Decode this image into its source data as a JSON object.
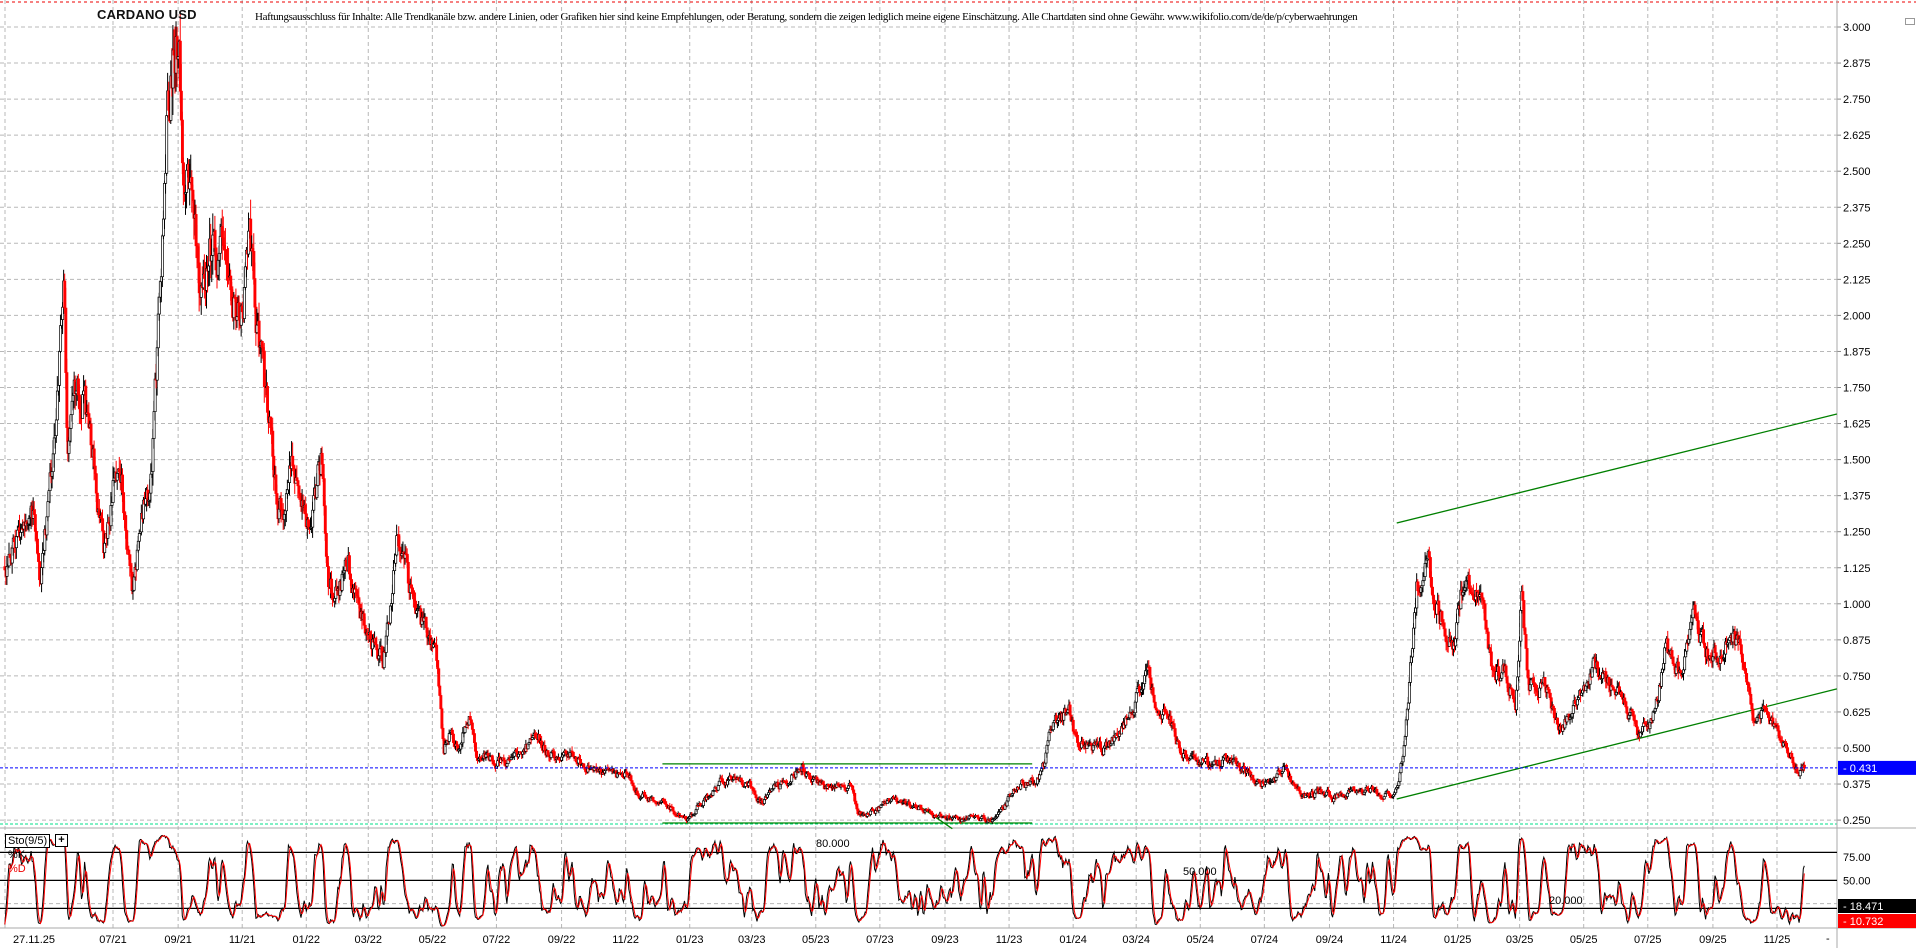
{
  "header": {
    "title": "CARDANO USD",
    "disclaimer": "Haftungsausschluss für Inhalte: Alle Trendkanäle bzw. andere Linien, oder Grafiken hier sind keine Empfehlungen, oder Beratung, sondern die zeigen lediglich meine eigene Einschätzung. Alle Chartdaten sind ohne Gewähr.  www.wikifolio.com/de/de/p/cyberwaehrungen"
  },
  "colors": {
    "up_candle": "#000000",
    "down_candle": "#ff0000",
    "trendline": "#008000",
    "last_price_line": "#0000ff",
    "grid": "#b8b8b8",
    "k_line": "#000000",
    "d_line": "#ff0000",
    "last_price_box": "#0000ff",
    "k_box": "#000000",
    "d_box": "#ff0000"
  },
  "chart_data": {
    "type": "candlestick",
    "title": "CARDANO USD",
    "ylim": [
      0.25,
      3.0
    ],
    "y_ticks": [
      "3.000",
      "2.875",
      "2.750",
      "2.625",
      "2.500",
      "2.375",
      "2.250",
      "2.125",
      "2.000",
      "1.875",
      "1.750",
      "1.625",
      "1.500",
      "1.375",
      "1.250",
      "1.125",
      "1.000",
      "0.875",
      "0.750",
      "0.625",
      "0.500",
      "0.375",
      "0.250"
    ],
    "x_ticks": [
      {
        "label": "27.11.25",
        "date": "2021-04-01"
      },
      {
        "label": "07/21",
        "date": "2021-07-01"
      },
      {
        "label": "09/21",
        "date": "2021-09-01"
      },
      {
        "label": "11/21",
        "date": "2021-11-01"
      },
      {
        "label": "01/22",
        "date": "2022-01-01"
      },
      {
        "label": "03/22",
        "date": "2022-03-01"
      },
      {
        "label": "05/22",
        "date": "2022-05-01"
      },
      {
        "label": "07/22",
        "date": "2022-07-01"
      },
      {
        "label": "09/22",
        "date": "2022-09-01"
      },
      {
        "label": "11/22",
        "date": "2022-11-01"
      },
      {
        "label": "01/23",
        "date": "2023-01-01"
      },
      {
        "label": "03/23",
        "date": "2023-03-01"
      },
      {
        "label": "05/23",
        "date": "2023-05-01"
      },
      {
        "label": "07/23",
        "date": "2023-07-01"
      },
      {
        "label": "09/23",
        "date": "2023-09-01"
      },
      {
        "label": "11/23",
        "date": "2023-11-01"
      },
      {
        "label": "01/24",
        "date": "2024-01-01"
      },
      {
        "label": "03/24",
        "date": "2024-03-01"
      },
      {
        "label": "05/24",
        "date": "2024-05-01"
      },
      {
        "label": "07/24",
        "date": "2024-07-01"
      },
      {
        "label": "09/24",
        "date": "2024-09-01"
      },
      {
        "label": "11/24",
        "date": "2024-11-01"
      },
      {
        "label": "01/25",
        "date": "2025-01-01"
      },
      {
        "label": "03/25",
        "date": "2025-03-01"
      },
      {
        "label": "05/25",
        "date": "2025-05-01"
      },
      {
        "label": "07/25",
        "date": "2025-07-01"
      },
      {
        "label": "09/25",
        "date": "2025-09-01"
      },
      {
        "label": "11/25",
        "date": "2025-11-01"
      }
    ],
    "grid": true,
    "close_series": [
      [
        "2021-03-20",
        1.15
      ],
      [
        "2021-04-01",
        1.2
      ],
      [
        "2021-04-14",
        1.4
      ],
      [
        "2021-04-23",
        1.1
      ],
      [
        "2021-05-01",
        1.35
      ],
      [
        "2021-05-08",
        1.65
      ],
      [
        "2021-05-15",
        2.2
      ],
      [
        "2021-05-19",
        1.55
      ],
      [
        "2021-05-25",
        1.7
      ],
      [
        "2021-06-03",
        1.75
      ],
      [
        "2021-06-12",
        1.5
      ],
      [
        "2021-06-22",
        1.2
      ],
      [
        "2021-07-01",
        1.4
      ],
      [
        "2021-07-10",
        1.38
      ],
      [
        "2021-07-20",
        1.05
      ],
      [
        "2021-07-28",
        1.3
      ],
      [
        "2021-08-07",
        1.45
      ],
      [
        "2021-08-14",
        2.05
      ],
      [
        "2021-08-22",
        2.8
      ],
      [
        "2021-09-02",
        2.95
      ],
      [
        "2021-09-07",
        2.45
      ],
      [
        "2021-09-14",
        2.4
      ],
      [
        "2021-09-21",
        2.1
      ],
      [
        "2021-10-01",
        2.25
      ],
      [
        "2021-10-10",
        2.2
      ],
      [
        "2021-10-20",
        2.15
      ],
      [
        "2021-11-01",
        1.98
      ],
      [
        "2021-11-08",
        2.3
      ],
      [
        "2021-11-16",
        1.95
      ],
      [
        "2021-11-28",
        1.6
      ],
      [
        "2021-12-04",
        1.35
      ],
      [
        "2021-12-12",
        1.3
      ],
      [
        "2021-12-18",
        1.55
      ],
      [
        "2021-12-28",
        1.35
      ],
      [
        "2022-01-05",
        1.3
      ],
      [
        "2022-01-15",
        1.5
      ],
      [
        "2022-01-22",
        1.05
      ],
      [
        "2022-02-01",
        1.05
      ],
      [
        "2022-02-10",
        1.15
      ],
      [
        "2022-02-20",
        0.95
      ],
      [
        "2022-03-01",
        0.9
      ],
      [
        "2022-03-15",
        0.8
      ],
      [
        "2022-03-28",
        1.2
      ],
      [
        "2022-04-05",
        1.15
      ],
      [
        "2022-04-15",
        0.95
      ],
      [
        "2022-04-25",
        0.9
      ],
      [
        "2022-05-05",
        0.8
      ],
      [
        "2022-05-12",
        0.5
      ],
      [
        "2022-05-18",
        0.55
      ],
      [
        "2022-05-25",
        0.5
      ],
      [
        "2022-06-05",
        0.62
      ],
      [
        "2022-06-13",
        0.48
      ],
      [
        "2022-06-20",
        0.48
      ],
      [
        "2022-07-01",
        0.45
      ],
      [
        "2022-07-15",
        0.45
      ],
      [
        "2022-07-28",
        0.5
      ],
      [
        "2022-08-10",
        0.53
      ],
      [
        "2022-08-20",
        0.48
      ],
      [
        "2022-09-01",
        0.47
      ],
      [
        "2022-09-12",
        0.48
      ],
      [
        "2022-09-22",
        0.44
      ],
      [
        "2022-10-05",
        0.43
      ],
      [
        "2022-10-20",
        0.4
      ],
      [
        "2022-11-05",
        0.4
      ],
      [
        "2022-11-10",
        0.33
      ],
      [
        "2022-11-20",
        0.33
      ],
      [
        "2022-11-28",
        0.32
      ],
      [
        "2022-12-10",
        0.31
      ],
      [
        "2022-12-20",
        0.27
      ],
      [
        "2022-12-30",
        0.25
      ],
      [
        "2023-01-08",
        0.3
      ],
      [
        "2023-01-20",
        0.34
      ],
      [
        "2023-02-01",
        0.39
      ],
      [
        "2023-02-15",
        0.4
      ],
      [
        "2023-03-01",
        0.36
      ],
      [
        "2023-03-10",
        0.31
      ],
      [
        "2023-03-20",
        0.36
      ],
      [
        "2023-04-01",
        0.38
      ],
      [
        "2023-04-18",
        0.44
      ],
      [
        "2023-04-25",
        0.39
      ],
      [
        "2023-05-10",
        0.37
      ],
      [
        "2023-05-25",
        0.37
      ],
      [
        "2023-06-05",
        0.36
      ],
      [
        "2023-06-10",
        0.28
      ],
      [
        "2023-06-20",
        0.27
      ],
      [
        "2023-07-01",
        0.29
      ],
      [
        "2023-07-13",
        0.33
      ],
      [
        "2023-07-25",
        0.31
      ],
      [
        "2023-08-10",
        0.29
      ],
      [
        "2023-08-18",
        0.27
      ],
      [
        "2023-09-01",
        0.26
      ],
      [
        "2023-09-15",
        0.25
      ],
      [
        "2023-10-01",
        0.26
      ],
      [
        "2023-10-15",
        0.25
      ],
      [
        "2023-10-25",
        0.28
      ],
      [
        "2023-11-05",
        0.36
      ],
      [
        "2023-11-15",
        0.38
      ],
      [
        "2023-11-25",
        0.38
      ],
      [
        "2023-12-05",
        0.45
      ],
      [
        "2023-12-10",
        0.58
      ],
      [
        "2023-12-20",
        0.6
      ],
      [
        "2023-12-28",
        0.62
      ],
      [
        "2024-01-05",
        0.52
      ],
      [
        "2024-01-20",
        0.5
      ],
      [
        "2024-02-01",
        0.5
      ],
      [
        "2024-02-12",
        0.55
      ],
      [
        "2024-02-25",
        0.62
      ],
      [
        "2024-03-05",
        0.72
      ],
      [
        "2024-03-13",
        0.76
      ],
      [
        "2024-03-22",
        0.62
      ],
      [
        "2024-04-01",
        0.62
      ],
      [
        "2024-04-13",
        0.47
      ],
      [
        "2024-04-25",
        0.47
      ],
      [
        "2024-05-10",
        0.44
      ],
      [
        "2024-05-25",
        0.46
      ],
      [
        "2024-06-10",
        0.43
      ],
      [
        "2024-06-25",
        0.39
      ],
      [
        "2024-07-05",
        0.37
      ],
      [
        "2024-07-20",
        0.43
      ],
      [
        "2024-08-05",
        0.33
      ],
      [
        "2024-08-20",
        0.35
      ],
      [
        "2024-09-05",
        0.33
      ],
      [
        "2024-09-20",
        0.36
      ],
      [
        "2024-10-01",
        0.35
      ],
      [
        "2024-10-15",
        0.35
      ],
      [
        "2024-10-28",
        0.34
      ],
      [
        "2024-11-06",
        0.38
      ],
      [
        "2024-11-12",
        0.55
      ],
      [
        "2024-11-17",
        0.78
      ],
      [
        "2024-11-23",
        1.05
      ],
      [
        "2024-12-03",
        1.22
      ],
      [
        "2024-12-10",
        1.0
      ],
      [
        "2024-12-18",
        0.95
      ],
      [
        "2024-12-28",
        0.85
      ],
      [
        "2025-01-05",
        1.05
      ],
      [
        "2025-01-17",
        1.08
      ],
      [
        "2025-01-26",
        0.95
      ],
      [
        "2025-02-03",
        0.75
      ],
      [
        "2025-02-15",
        0.77
      ],
      [
        "2025-02-25",
        0.65
      ],
      [
        "2025-03-03",
        1.05
      ],
      [
        "2025-03-10",
        0.7
      ],
      [
        "2025-03-25",
        0.72
      ],
      [
        "2025-04-07",
        0.58
      ],
      [
        "2025-04-20",
        0.62
      ],
      [
        "2025-05-10",
        0.78
      ],
      [
        "2025-05-25",
        0.73
      ],
      [
        "2025-06-10",
        0.65
      ],
      [
        "2025-06-22",
        0.55
      ],
      [
        "2025-07-05",
        0.58
      ],
      [
        "2025-07-18",
        0.85
      ],
      [
        "2025-08-02",
        0.75
      ],
      [
        "2025-08-14",
        0.97
      ],
      [
        "2025-08-25",
        0.83
      ],
      [
        "2025-09-05",
        0.82
      ],
      [
        "2025-09-18",
        0.9
      ],
      [
        "2025-10-01",
        0.8
      ],
      [
        "2025-10-10",
        0.6
      ],
      [
        "2025-10-20",
        0.64
      ],
      [
        "2025-11-04",
        0.53
      ],
      [
        "2025-11-15",
        0.47
      ],
      [
        "2025-11-21",
        0.42
      ],
      [
        "2025-11-27",
        0.43
      ]
    ],
    "last_price": "0.431",
    "trendlines": [
      {
        "from": [
          "2022-12-06",
          0.445
        ],
        "to": [
          "2023-11-23",
          0.445
        ]
      },
      {
        "from": [
          "2022-12-06",
          0.24
        ],
        "to": [
          "2023-11-23",
          0.24
        ]
      },
      {
        "from": [
          "2023-08-07",
          0.3
        ],
        "to": [
          "2023-09-08",
          0.22
        ]
      },
      {
        "from": [
          "2024-11-04",
          1.28
        ],
        "to": [
          "2025-12-28",
          1.658
        ]
      },
      {
        "from": [
          "2024-11-04",
          0.323
        ],
        "to": [
          "2025-12-28",
          0.705
        ]
      }
    ],
    "indicator": {
      "name": "Sto(9/5)",
      "k_label": "%K",
      "d_label": "%D",
      "ylim": [
        0,
        100
      ],
      "levels": [
        80,
        50,
        20
      ],
      "level_labels": [
        "80.000",
        "50.000",
        "20.000"
      ],
      "axis_ticks": [
        "75.00",
        "50.00"
      ],
      "k_last": "18.471",
      "d_last": "10.732"
    }
  }
}
